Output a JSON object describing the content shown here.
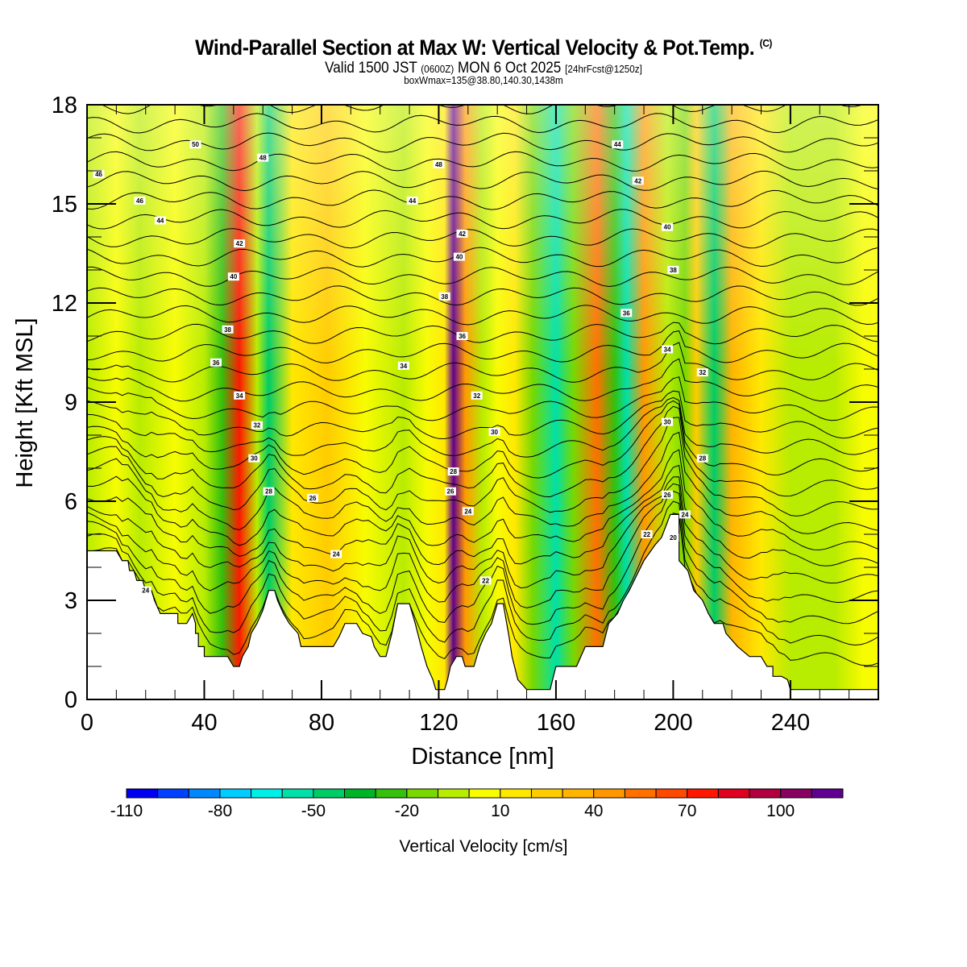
{
  "header": {
    "title": "Wind-Parallel Section at Max W: Vertical Velocity & Pot.Temp.",
    "copyright": "(C)",
    "valid_prefix": "Valid 1500 JST",
    "valid_utc": "(0600Z)",
    "valid_date": "MON 6 Oct 2025",
    "forecast": "[24hrFcst@1250z]",
    "boxwmax": "boxWmax=135@38.80,140.30,1438m"
  },
  "chart_data": {
    "type": "heatmap",
    "title": "Wind-Parallel Section at Max W: Vertical Velocity & Pot.Temp.",
    "xlabel": "Distance [nm]",
    "ylabel": "Height [Kft MSL]",
    "xlim": [
      0,
      270
    ],
    "ylim": [
      0,
      18
    ],
    "xticks": [
      "0",
      "40",
      "80",
      "120",
      "160",
      "200",
      "240"
    ],
    "xtick_values": [
      0,
      40,
      80,
      120,
      160,
      200,
      240
    ],
    "yticks": [
      "0",
      "3",
      "6",
      "9",
      "12",
      "15",
      "18"
    ],
    "ytick_values": [
      0,
      3,
      6,
      9,
      12,
      15,
      18
    ],
    "colorbar": {
      "label": "Vertical Velocity [cm/s]",
      "tick_labels": [
        "-110",
        "-80",
        "-50",
        "-20",
        "10",
        "40",
        "70",
        "100"
      ],
      "tick_values": [
        -110,
        -80,
        -50,
        -20,
        10,
        40,
        70,
        100
      ],
      "levels_from": -110,
      "level_step": 10,
      "colors": [
        "#0000f0",
        "#0040ff",
        "#0088ff",
        "#00ccff",
        "#00f0e8",
        "#00e0a8",
        "#00cc66",
        "#00b428",
        "#34c00c",
        "#78d800",
        "#b8ec00",
        "#f8fc00",
        "#ffe800",
        "#ffcc00",
        "#ffb400",
        "#ff9800",
        "#ff7000",
        "#ff4800",
        "#ff1800",
        "#e00020",
        "#b00040",
        "#880060",
        "#600090"
      ]
    },
    "velocity_bands": [
      {
        "x": 0,
        "w": -5
      },
      {
        "x": 10,
        "w": 0
      },
      {
        "x": 18,
        "w": -8
      },
      {
        "x": 30,
        "w": 5
      },
      {
        "x": 40,
        "w": -3
      },
      {
        "x": 46,
        "w": -25
      },
      {
        "x": 52,
        "w": 70
      },
      {
        "x": 58,
        "w": -10
      },
      {
        "x": 62,
        "w": -45
      },
      {
        "x": 70,
        "w": 10
      },
      {
        "x": 82,
        "w": 25
      },
      {
        "x": 95,
        "w": 8
      },
      {
        "x": 108,
        "w": -8
      },
      {
        "x": 116,
        "w": 5
      },
      {
        "x": 122,
        "w": 15
      },
      {
        "x": 125,
        "w": 110
      },
      {
        "x": 129,
        "w": 40
      },
      {
        "x": 135,
        "w": -10
      },
      {
        "x": 140,
        "w": 8
      },
      {
        "x": 146,
        "w": 15
      },
      {
        "x": 152,
        "w": -15
      },
      {
        "x": 160,
        "w": -55
      },
      {
        "x": 166,
        "w": -20
      },
      {
        "x": 174,
        "w": 50
      },
      {
        "x": 180,
        "w": -30
      },
      {
        "x": 184,
        "w": -60
      },
      {
        "x": 190,
        "w": 45
      },
      {
        "x": 198,
        "w": -5
      },
      {
        "x": 204,
        "w": -20
      },
      {
        "x": 208,
        "w": 25
      },
      {
        "x": 214,
        "w": -50
      },
      {
        "x": 220,
        "w": 30
      },
      {
        "x": 230,
        "w": 10
      },
      {
        "x": 240,
        "w": -5
      },
      {
        "x": 255,
        "w": -8
      },
      {
        "x": 265,
        "w": 5
      }
    ],
    "isentrope_labels": [
      {
        "text": "50",
        "x": 37,
        "y": 16.8
      },
      {
        "text": "48",
        "x": 60,
        "y": 16.4
      },
      {
        "text": "46",
        "x": 4,
        "y": 15.9
      },
      {
        "text": "46",
        "x": 18,
        "y": 15.1
      },
      {
        "text": "44",
        "x": 25,
        "y": 14.5
      },
      {
        "text": "42",
        "x": 52,
        "y": 13.8
      },
      {
        "text": "40",
        "x": 50,
        "y": 12.8
      },
      {
        "text": "38",
        "x": 48,
        "y": 11.2
      },
      {
        "text": "36",
        "x": 44,
        "y": 10.2
      },
      {
        "text": "34",
        "x": 52,
        "y": 9.2
      },
      {
        "text": "32",
        "x": 58,
        "y": 8.3
      },
      {
        "text": "30",
        "x": 57,
        "y": 7.3
      },
      {
        "text": "28",
        "x": 62,
        "y": 6.3
      },
      {
        "text": "26",
        "x": 77,
        "y": 6.1
      },
      {
        "text": "24",
        "x": 85,
        "y": 4.4
      },
      {
        "text": "24",
        "x": 20,
        "y": 3.3
      },
      {
        "text": "48",
        "x": 120,
        "y": 16.2
      },
      {
        "text": "44",
        "x": 111,
        "y": 15.1
      },
      {
        "text": "42",
        "x": 128,
        "y": 14.1
      },
      {
        "text": "40",
        "x": 127,
        "y": 13.4
      },
      {
        "text": "38",
        "x": 122,
        "y": 12.2
      },
      {
        "text": "36",
        "x": 128,
        "y": 11.0
      },
      {
        "text": "34",
        "x": 108,
        "y": 10.1
      },
      {
        "text": "32",
        "x": 133,
        "y": 9.2
      },
      {
        "text": "30",
        "x": 139,
        "y": 8.1
      },
      {
        "text": "28",
        "x": 125,
        "y": 6.9
      },
      {
        "text": "26",
        "x": 124,
        "y": 6.3
      },
      {
        "text": "24",
        "x": 130,
        "y": 5.7
      },
      {
        "text": "22",
        "x": 136,
        "y": 3.6
      },
      {
        "text": "44",
        "x": 181,
        "y": 16.8
      },
      {
        "text": "42",
        "x": 188,
        "y": 15.7
      },
      {
        "text": "40",
        "x": 198,
        "y": 14.3
      },
      {
        "text": "38",
        "x": 200,
        "y": 13.0
      },
      {
        "text": "36",
        "x": 184,
        "y": 11.7
      },
      {
        "text": "34",
        "x": 198,
        "y": 10.6
      },
      {
        "text": "32",
        "x": 210,
        "y": 9.9
      },
      {
        "text": "30",
        "x": 198,
        "y": 8.4
      },
      {
        "text": "28",
        "x": 210,
        "y": 7.3
      },
      {
        "text": "26",
        "x": 198,
        "y": 6.2
      },
      {
        "text": "24",
        "x": 204,
        "y": 5.6
      },
      {
        "text": "22",
        "x": 191,
        "y": 5.0
      },
      {
        "text": "20",
        "x": 200,
        "y": 4.9
      }
    ],
    "terrain": [
      [
        0,
        4.5
      ],
      [
        10,
        4.5
      ],
      [
        12,
        4.2
      ],
      [
        14,
        4.2
      ],
      [
        14.5,
        3.9
      ],
      [
        16,
        3.9
      ],
      [
        17,
        3.6
      ],
      [
        19,
        3.6
      ],
      [
        20,
        3.3
      ],
      [
        22,
        3.3
      ],
      [
        23,
        3.0
      ],
      [
        25,
        2.6
      ],
      [
        31,
        2.6
      ],
      [
        31,
        2.3
      ],
      [
        34,
        2.3
      ],
      [
        36,
        2.6
      ],
      [
        37,
        2.3
      ],
      [
        37,
        2.0
      ],
      [
        38,
        2.0
      ],
      [
        38,
        1.6
      ],
      [
        40,
        1.6
      ],
      [
        40,
        1.3
      ],
      [
        48,
        1.3
      ],
      [
        50,
        1.0
      ],
      [
        52,
        1.0
      ],
      [
        53,
        1.3
      ],
      [
        55,
        1.6
      ],
      [
        56,
        2.0
      ],
      [
        58,
        2.3
      ],
      [
        60,
        2.7
      ],
      [
        62,
        3.3
      ],
      [
        64,
        3.3
      ],
      [
        65,
        3.0
      ],
      [
        67,
        2.6
      ],
      [
        69,
        2.3
      ],
      [
        72,
        2.0
      ],
      [
        73,
        1.6
      ],
      [
        84,
        1.6
      ],
      [
        86,
        1.9
      ],
      [
        88,
        2.3
      ],
      [
        92,
        2.3
      ],
      [
        94,
        2.0
      ],
      [
        97,
        1.9
      ],
      [
        98,
        1.6
      ],
      [
        100,
        1.3
      ],
      [
        102,
        1.3
      ],
      [
        104,
        2.0
      ],
      [
        106,
        2.9
      ],
      [
        110,
        2.9
      ],
      [
        112,
        2.3
      ],
      [
        114,
        1.6
      ],
      [
        116,
        1.0
      ],
      [
        118,
        0.6
      ],
      [
        119,
        0.3
      ],
      [
        122,
        0.3
      ],
      [
        123,
        0.6
      ],
      [
        124,
        1.0
      ],
      [
        126,
        1.3
      ],
      [
        128,
        1.3
      ],
      [
        129,
        1.0
      ],
      [
        132,
        1.0
      ],
      [
        133,
        1.3
      ],
      [
        134,
        1.6
      ],
      [
        136,
        2.0
      ],
      [
        138,
        2.3
      ],
      [
        140,
        2.9
      ],
      [
        142,
        2.9
      ],
      [
        144,
        1.9
      ],
      [
        145,
        1.3
      ],
      [
        147,
        0.6
      ],
      [
        150,
        0.3
      ],
      [
        158,
        0.3
      ],
      [
        160,
        1.0
      ],
      [
        167,
        1.0
      ],
      [
        170,
        1.6
      ],
      [
        176,
        1.6
      ],
      [
        178,
        2.3
      ],
      [
        181,
        2.6
      ],
      [
        183,
        3.0
      ],
      [
        185,
        3.3
      ],
      [
        190,
        4.2
      ],
      [
        194,
        4.7
      ],
      [
        196,
        4.9
      ],
      [
        199,
        5.6
      ],
      [
        202,
        5.6
      ],
      [
        202,
        4.2
      ],
      [
        205,
        3.9
      ],
      [
        207,
        3.3
      ],
      [
        210,
        3.0
      ],
      [
        212,
        2.6
      ],
      [
        214,
        2.3
      ],
      [
        217,
        2.3
      ],
      [
        218,
        2.0
      ],
      [
        222,
        1.6
      ],
      [
        226,
        1.3
      ],
      [
        230,
        1.3
      ],
      [
        232,
        1.0
      ],
      [
        234,
        1.0
      ],
      [
        234,
        0.7
      ],
      [
        237,
        0.7
      ],
      [
        239,
        0.6
      ],
      [
        240,
        0.3
      ],
      [
        270,
        0.3
      ]
    ]
  }
}
